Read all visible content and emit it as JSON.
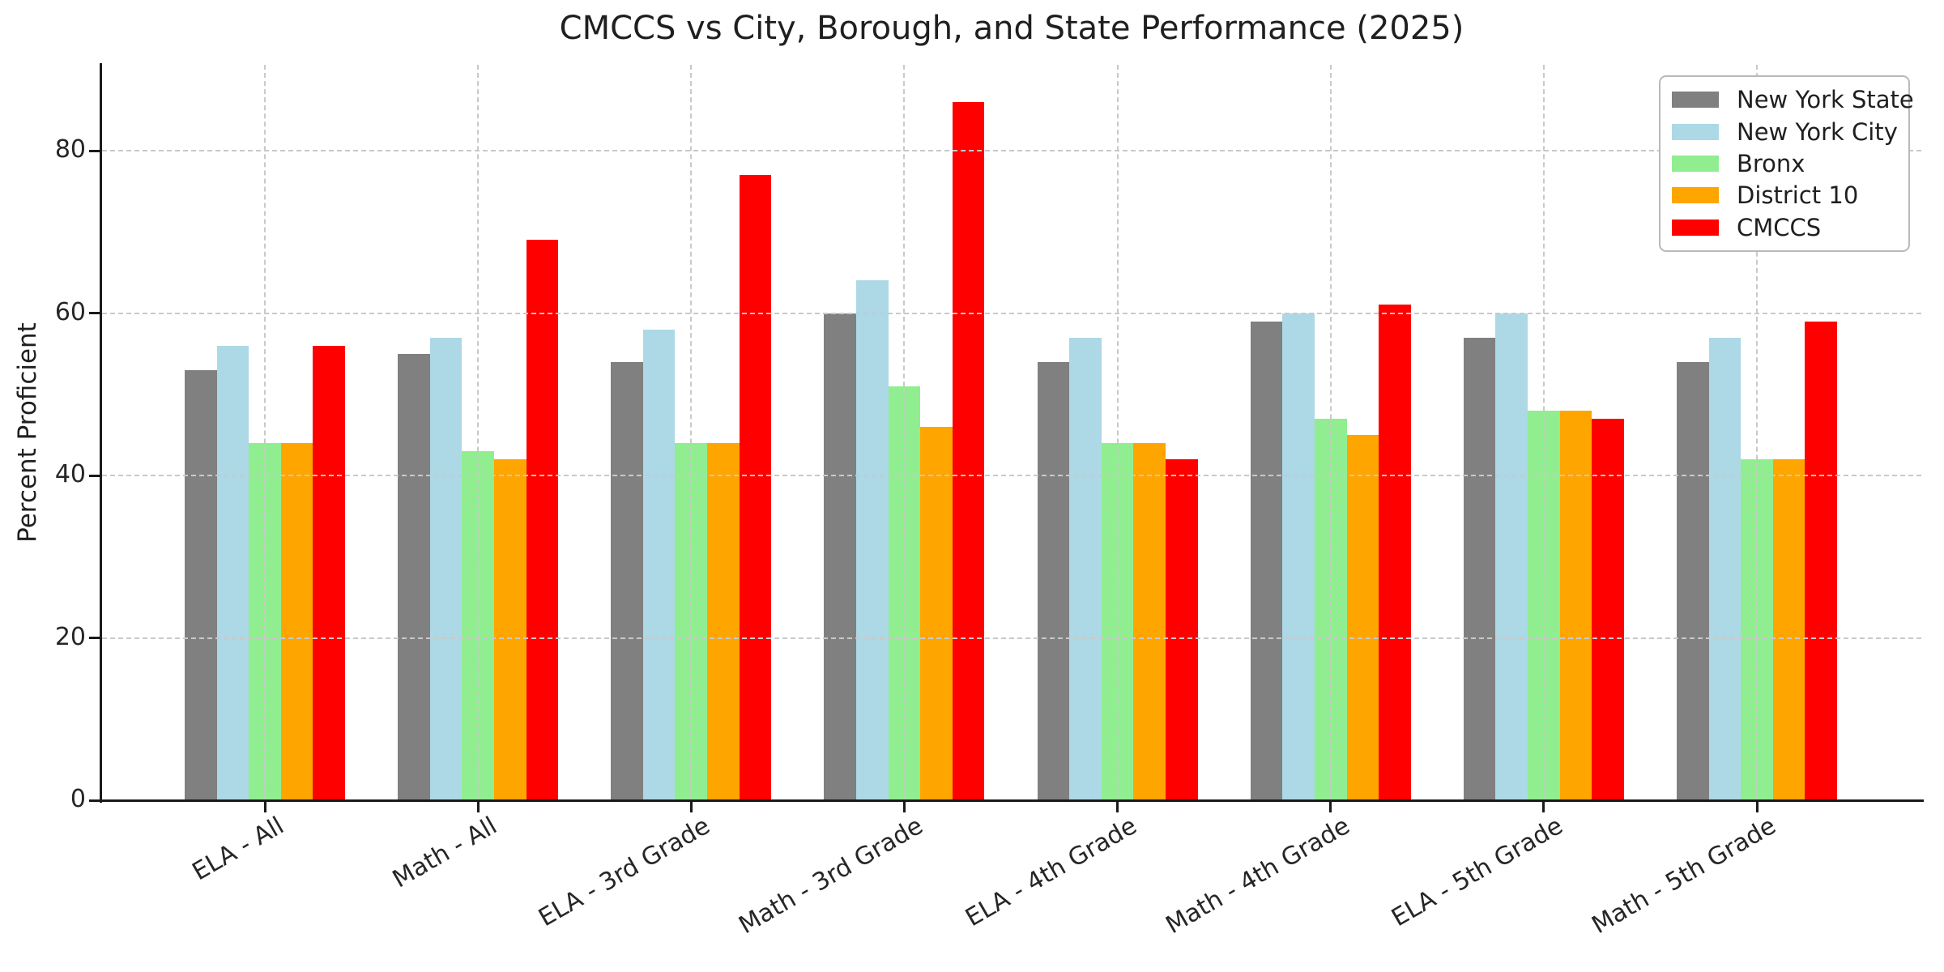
{
  "chart_data": {
    "type": "bar",
    "title": "CMCCS vs City, Borough, and State Performance (2025)",
    "ylabel": "Percent Proficient",
    "xlabel": "",
    "categories": [
      "ELA - All",
      "Math - All",
      "ELA - 3rd Grade",
      "Math - 3rd Grade",
      "ELA - 4th Grade",
      "Math - 4th Grade",
      "ELA - 5th Grade",
      "Math - 5th Grade"
    ],
    "series": [
      {
        "name": "New York State",
        "color": "#808080",
        "values": [
          53,
          55,
          54,
          60,
          54,
          59,
          57,
          54
        ]
      },
      {
        "name": "New York City",
        "color": "#ADD8E6",
        "values": [
          56,
          57,
          58,
          64,
          57,
          60,
          60,
          57
        ]
      },
      {
        "name": "Bronx",
        "color": "#90EE90",
        "values": [
          44,
          43,
          44,
          51,
          44,
          47,
          48,
          42
        ]
      },
      {
        "name": "District 10",
        "color": "#FFA500",
        "values": [
          44,
          42,
          44,
          46,
          44,
          45,
          48,
          42
        ]
      },
      {
        "name": "CMCCS",
        "color": "#FF0000",
        "values": [
          56,
          69,
          77,
          86,
          42,
          61,
          47,
          59
        ]
      }
    ],
    "yticks": [
      0,
      20,
      40,
      60,
      80
    ],
    "ylim": [
      0,
      90.5
    ],
    "grid": true,
    "grid_style": "dashed",
    "grid_above_bars": true,
    "legend_position": "upper right",
    "tick_label_rotation_deg": 30
  }
}
